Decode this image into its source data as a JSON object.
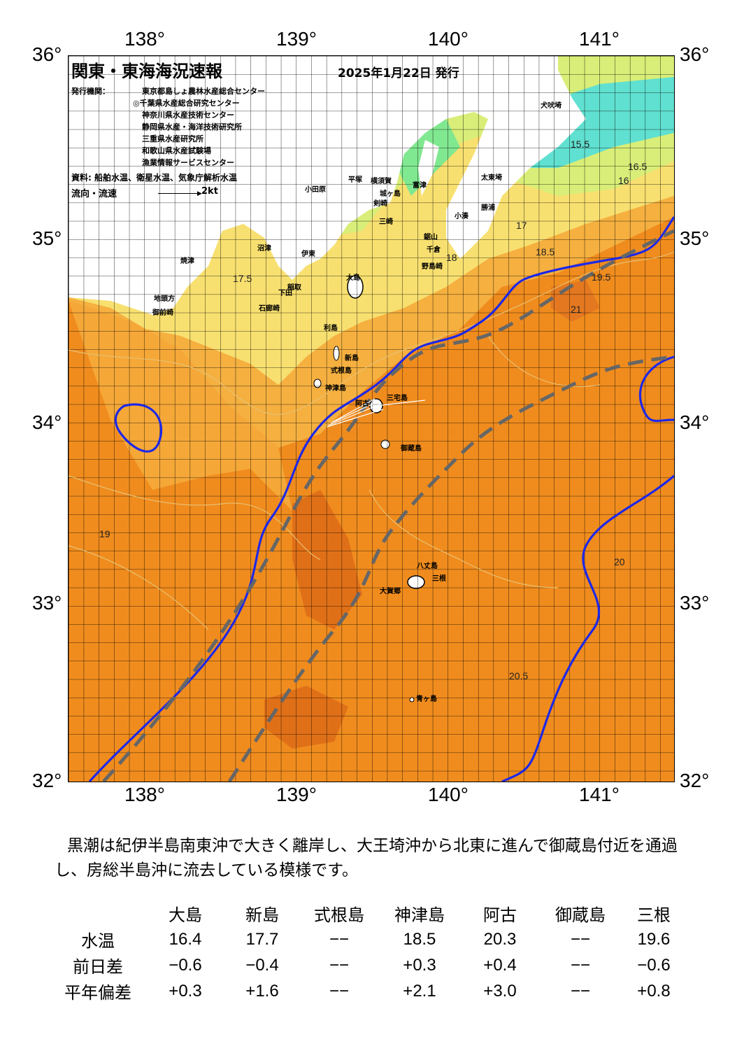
{
  "header": {
    "title": "関東・東海海況速報",
    "date": "2025年1月22日 発行",
    "issuer_label": "発行機関：",
    "issuers": [
      "東京都島しょ農林水産総合センター",
      "◎千葉県水産総合研究センター",
      "神奈川県水産技術センター",
      "静岡県水産・海洋技術研究所",
      "三重県水産研究所",
      "和歌山県水産試験場",
      "漁業情報サービスセンター"
    ],
    "source": "資料: 船舶水温、衛星水温、気象庁解析水温",
    "flow_label": "流向・流速",
    "flow_scale": "2kt"
  },
  "axes": {
    "lon_top": [
      "138°",
      "139°",
      "140°",
      "141°"
    ],
    "lon_bottom": [
      "138°",
      "139°",
      "140°",
      "141°"
    ],
    "lat_left": [
      "36°",
      "35°",
      "34°",
      "33°",
      "32°"
    ],
    "lat_right": [
      "36°",
      "35°",
      "34°",
      "33°",
      "32°"
    ]
  },
  "places": [
    "犬吠埼",
    "太東埼",
    "勝浦",
    "小湊",
    "鋸山",
    "千倉",
    "野島崎",
    "横須賀",
    "城ヶ島",
    "剣崎",
    "三崎",
    "富津",
    "平塚",
    "小田原",
    "大島",
    "下田",
    "石廊崎",
    "伊東",
    "稲取",
    "沼津",
    "焼津",
    "御前崎",
    "地頭方",
    "利島",
    "新島",
    "式根島",
    "神津島",
    "三宅島",
    "阿古",
    "御蔵島",
    "八丈島",
    "三根",
    "大賀郷",
    "青ヶ島"
  ],
  "isotherm_labels": [
    "15.5",
    "16",
    "16.5",
    "17",
    "17.5",
    "18",
    "18.5",
    "19",
    "19.5",
    "20",
    "20.5",
    "21"
  ],
  "colors": {
    "warm": "#f08c1e",
    "warmest": "#e07018",
    "mid": "#f5b040",
    "cool": "#f8e070",
    "cooler": "#d8ee78",
    "cold": "#80e890",
    "coldest": "#60e0d0",
    "kuroshio_line": "#1e28e6",
    "axis_line": "#666666",
    "grid": "#000000"
  },
  "summary": "黒潮は紀伊半島南東沖で大きく離岸し、大王埼沖から北東に進んで御蔵島付近を通過し、房総半島沖に流去している模様です。",
  "obs_table": {
    "columns": [
      "大島",
      "新島",
      "式根島",
      "神津島",
      "阿古",
      "御蔵島",
      "三根"
    ],
    "rows": [
      {
        "label": "水温",
        "values": [
          "16.4",
          "17.7",
          "−−",
          "18.5",
          "20.3",
          "−−",
          "19.6"
        ]
      },
      {
        "label": "前日差",
        "values": [
          "−0.6",
          "−0.4",
          "−−",
          "+0.3",
          "+0.4",
          "−−",
          "−0.6"
        ]
      },
      {
        "label": "平年偏差",
        "values": [
          "+0.3",
          "+1.6",
          "−−",
          "+2.1",
          "+3.0",
          "−−",
          "+0.8"
        ]
      }
    ]
  }
}
